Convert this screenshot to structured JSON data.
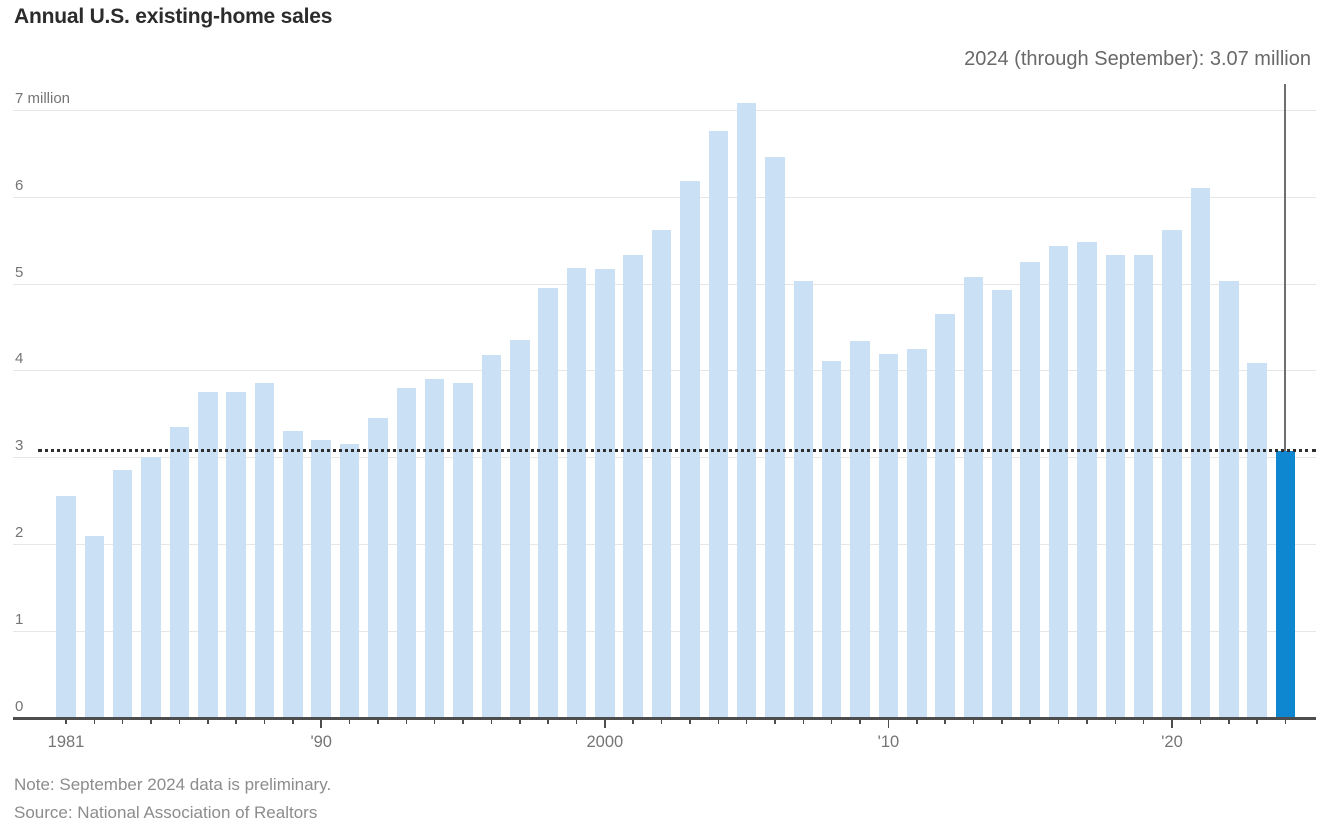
{
  "chart_data": {
    "type": "bar",
    "title": "Annual U.S. existing-home sales",
    "annotation": "2024 (through September): 3.07 million",
    "unit": "million",
    "categories": [
      1981,
      1982,
      1983,
      1984,
      1985,
      1986,
      1987,
      1988,
      1989,
      1990,
      1991,
      1992,
      1993,
      1994,
      1995,
      1996,
      1997,
      1998,
      1999,
      2000,
      2001,
      2002,
      2003,
      2004,
      2005,
      2006,
      2007,
      2008,
      2009,
      2010,
      2011,
      2012,
      2013,
      2014,
      2015,
      2016,
      2017,
      2018,
      2019,
      2020,
      2021,
      2022,
      2023,
      2024
    ],
    "values": [
      2.55,
      2.1,
      2.85,
      3.0,
      3.35,
      3.75,
      3.75,
      3.85,
      3.3,
      3.2,
      3.15,
      3.45,
      3.8,
      3.9,
      3.85,
      4.18,
      4.35,
      4.95,
      5.18,
      5.17,
      5.33,
      5.62,
      6.18,
      6.75,
      7.08,
      6.45,
      5.03,
      4.11,
      4.34,
      4.19,
      4.25,
      4.65,
      5.08,
      4.93,
      5.25,
      5.43,
      5.48,
      5.33,
      5.33,
      5.62,
      6.1,
      5.03,
      4.09,
      3.07
    ],
    "highlight_category": 2024,
    "highlight_value": 3.07,
    "reference_line": {
      "value": 3.07,
      "style": "dotted"
    },
    "y_axis": {
      "ticks": [
        0,
        1,
        2,
        3,
        4,
        5,
        6,
        7
      ],
      "top_label": "7 million",
      "range": [
        0,
        7.3
      ]
    },
    "x_axis": {
      "tick_labels": [
        {
          "label": "1981",
          "year": 1981
        },
        {
          "label": "'90",
          "year": 1990
        },
        {
          "label": "2000",
          "year": 2000
        },
        {
          "label": "'10",
          "year": 2010
        },
        {
          "label": "'20",
          "year": 2020
        }
      ]
    },
    "grid": "horizontal",
    "legend": "none",
    "note": "Note: September 2024 data is preliminary.",
    "source": "Source: National Association of Realtors",
    "colors": {
      "bar": "#c9e0f5",
      "highlight_bar": "#0e87d0",
      "reference_line": "#2e2e2e",
      "gridline": "#e6e6e6",
      "axis": "#4d4d4d",
      "annotation_line": "#6f6f6f",
      "title_text": "#2b2b2b",
      "annotation_text": "#696969",
      "axis_text": "#757575",
      "note_text": "#8c8c8c"
    }
  }
}
